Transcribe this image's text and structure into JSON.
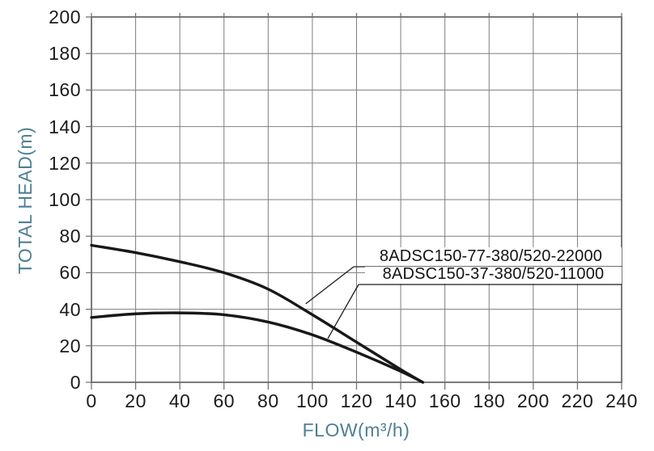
{
  "chart_data": {
    "type": "line",
    "title": "",
    "xlabel": "FLOW(m³/h)",
    "ylabel": "TOTAL HEAD(m)",
    "xlim": [
      0,
      240
    ],
    "ylim": [
      0,
      200
    ],
    "xticks": [
      0,
      20,
      40,
      60,
      80,
      100,
      120,
      140,
      160,
      180,
      200,
      220,
      240
    ],
    "yticks": [
      0,
      20,
      40,
      60,
      80,
      100,
      120,
      140,
      160,
      180,
      200
    ],
    "grid": true,
    "legend_position": "inline-callouts",
    "series": [
      {
        "name": "8ADSC150-77-380/520-22000",
        "x": [
          0,
          20,
          40,
          60,
          80,
          100,
          120,
          140,
          150
        ],
        "y": [
          75,
          71,
          66,
          60,
          51,
          37,
          22,
          7,
          0
        ]
      },
      {
        "name": "8ADSC150-37-380/520-11000",
        "x": [
          0,
          20,
          40,
          60,
          80,
          100,
          120,
          140,
          150
        ],
        "y": [
          35.5,
          37.5,
          38,
          37,
          33,
          26,
          16.5,
          6,
          0
        ]
      }
    ],
    "callouts": [
      {
        "label": "8ADSC150-77-380/520-22000",
        "series": 0,
        "attach_x": 97,
        "attach_y": 43
      },
      {
        "label": "8ADSC150-37-380/520-11000",
        "series": 1,
        "attach_x": 107,
        "attach_y": 24
      }
    ]
  },
  "colors": {
    "background": "#ffffff",
    "grid": "#7e7e7e",
    "border": "#6b6b6b",
    "tick": "#6b6b6b",
    "curve": "#181818",
    "callout_line": "#1b1b1b",
    "tick_label": "#1c1c1c",
    "axis_title": "#4f7f94"
  }
}
